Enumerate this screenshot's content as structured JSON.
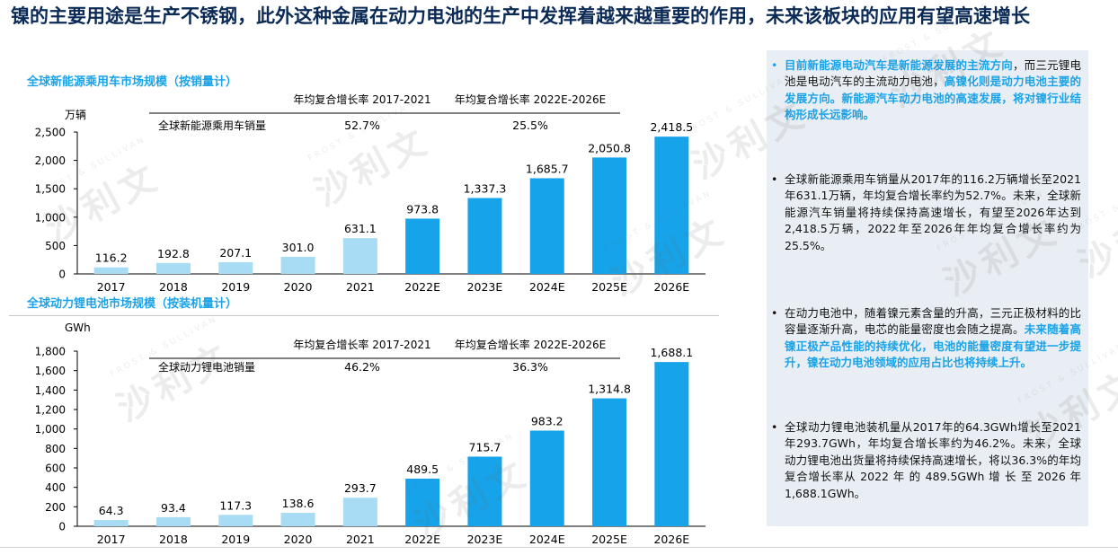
{
  "header": {
    "title": "镍的主要用途是生产不锈钢，此外这种金属在动力电池的生产中发挥着越来越重要的作用，未来该板块的应用有望高速增长"
  },
  "colors": {
    "historical": "#a8dcf4",
    "forecast": "#16a3e9",
    "accent": "#1aa3e8",
    "title": "#0b2b56"
  },
  "chart_data": [
    {
      "type": "bar",
      "title": "全球新能源乘用车市场规模（按销量计）",
      "unit": "万辆",
      "categories": [
        "2017",
        "2018",
        "2019",
        "2020",
        "2021",
        "2022E",
        "2023E",
        "2024E",
        "2025E",
        "2026E"
      ],
      "values": [
        116.2,
        192.8,
        207.1,
        301.0,
        631.1,
        973.8,
        1337.3,
        1685.7,
        2050.8,
        2418.5
      ],
      "value_labels": [
        "116.2",
        "192.8",
        "207.1",
        "301.0",
        "631.1",
        "973.8",
        "1,337.3",
        "1,685.7",
        "2,050.8",
        "2,418.5"
      ],
      "forecast_from_index": 5,
      "ylim": [
        0,
        2500
      ],
      "yticks": [
        0,
        500,
        1000,
        1500,
        2000,
        2500
      ],
      "ytick_labels": [
        "0",
        "500",
        "1,000",
        "1,500",
        "2,000",
        "2,500"
      ],
      "cagr_table": {
        "headers": [
          "年均复合增长率 2017-2021",
          "年均复合增长率 2022E-2026E"
        ],
        "row_label": "全球新能源乘用车销量",
        "values": [
          "52.7%",
          "25.5%"
        ]
      }
    },
    {
      "type": "bar",
      "title": "全球动力锂电池市场规模（按装机量计）",
      "unit": "GWh",
      "categories": [
        "2017",
        "2018",
        "2019",
        "2020",
        "2021",
        "2022E",
        "2023E",
        "2024E",
        "2025E",
        "2026E"
      ],
      "values": [
        64.3,
        93.4,
        117.3,
        138.6,
        293.7,
        489.5,
        715.7,
        983.2,
        1314.8,
        1688.1
      ],
      "value_labels": [
        "64.3",
        "93.4",
        "117.3",
        "138.6",
        "293.7",
        "489.5",
        "715.7",
        "983.2",
        "1,314.8",
        "1,688.1"
      ],
      "forecast_from_index": 5,
      "ylim": [
        0,
        1800
      ],
      "yticks": [
        0,
        200,
        400,
        600,
        800,
        1000,
        1200,
        1400,
        1600,
        1800
      ],
      "ytick_labels": [
        "0",
        "200",
        "400",
        "600",
        "800",
        "1,000",
        "1,200",
        "1,400",
        "1,600",
        "1,800"
      ],
      "cagr_table": {
        "headers": [
          "年均复合增长率 2017-2021",
          "年均复合增长率 2022E-2026E"
        ],
        "row_label": "全球动力锂电池销量",
        "values": [
          "46.2%",
          "36.3%"
        ]
      }
    }
  ],
  "sidebar": {
    "bullets": [
      {
        "segments": [
          {
            "text": "目前新能源电动汽车是新能源发展的主流方向",
            "hl": true
          },
          {
            "text": "，而三元锂电池是电动汽车的主流动力电池，",
            "hl": false
          },
          {
            "text": "高镍化则是动力电池主要的发展方向。新能源汽车动力电池的高速发展，将对镍行业结构形成长远影响。",
            "hl": true
          }
        ]
      },
      {
        "segments": [
          {
            "text": "全球新能源乘用车销量从2017年的116.2万辆增长至2021年631.1万辆，年均复合增长率约为52.7%。未来，全球新能源汽车销量将持续保持高速增长，有望至2026年达到2,418.5万辆，2022年至2026年年均复合增长率约为25.5%。",
            "hl": false
          }
        ]
      },
      {
        "segments": [
          {
            "text": "在动力电池中，随着镍元素含量的升高，三元正极材料的比容量逐渐升高，电芯的能量密度也会随之提高。",
            "hl": false
          },
          {
            "text": "未来随着高镍正极产品性能的持续优化，电池的能量密度有望进一步提升，镍在动力电池领域的应用占比也将持续上升。",
            "hl": true
          }
        ]
      },
      {
        "segments": [
          {
            "text": "全球动力锂电池装机量从2017年的64.3GWh增长至2021年293.7GWh，年均复合增长率约为46.2%。未来，全球动力锂电池出货量将持续保持高速增长，将以36.3%的年均复合增长率从 2022 年 的 489.5GWh 增 长 至 2026 年1,688.1GWh。",
            "hl": false
          }
        ]
      }
    ]
  },
  "watermark": {
    "glyphs": [
      "沙",
      "利",
      "文"
    ],
    "brand": "FROST & SULLIVAN"
  }
}
